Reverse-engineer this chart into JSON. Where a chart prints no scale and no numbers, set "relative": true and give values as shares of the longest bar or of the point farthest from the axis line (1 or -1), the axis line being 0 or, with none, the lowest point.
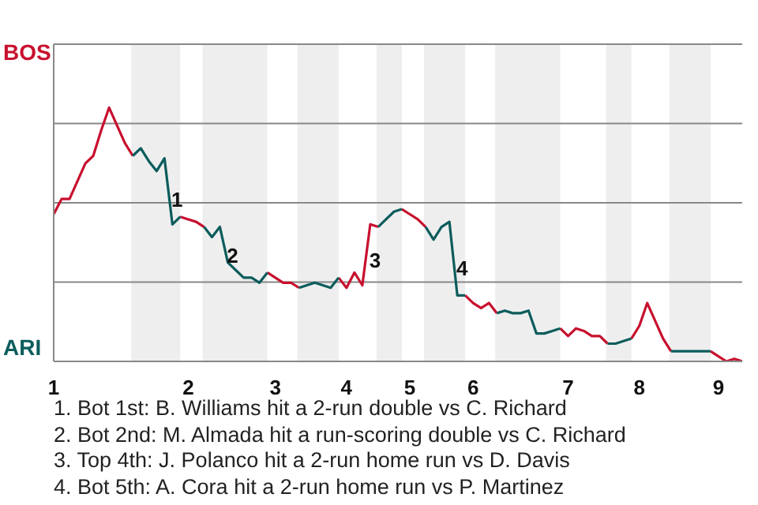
{
  "chart_data": {
    "type": "line",
    "relative": true,
    "categories": [
      "1",
      null,
      null,
      null,
      null,
      null,
      null,
      null,
      null,
      null,
      null,
      null,
      null,
      null,
      null,
      null,
      null,
      "2",
      null,
      null,
      null,
      null,
      null,
      null,
      null,
      null,
      null,
      null,
      "3",
      null,
      null,
      null,
      null,
      null,
      null,
      null,
      null,
      "4",
      null,
      null,
      null,
      null,
      null,
      null,
      null,
      "5",
      null,
      null,
      null,
      null,
      null,
      null,
      null,
      "6",
      null,
      null,
      null,
      null,
      null,
      null,
      null,
      null,
      null,
      null,
      null,
      "7",
      null,
      null,
      null,
      null,
      null,
      null,
      null,
      null,
      "8",
      null,
      null,
      null,
      null,
      null,
      null,
      null,
      null,
      null,
      "9",
      null,
      null,
      null
    ],
    "series": [
      {
        "color": "#c8102e",
        "values": [
          0.58,
          0.64,
          0.64,
          0.71,
          0.78,
          0.81,
          0.91,
          1,
          0.93,
          0.86,
          0.81,
          null,
          null,
          null,
          null,
          null,
          0.57,
          0.56,
          0.55,
          0.53,
          null,
          null,
          null,
          null,
          null,
          null,
          null,
          0.35,
          0.33,
          0.31,
          0.31,
          0.29,
          null,
          null,
          null,
          null,
          0.33,
          0.29,
          0.35,
          0.3,
          0.54,
          0.53,
          null,
          null,
          0.6,
          0.58,
          0.56,
          0.53,
          null,
          null,
          null,
          null,
          0.26,
          0.23,
          0.21,
          0.23,
          0.19,
          null,
          null,
          null,
          null,
          null,
          null,
          null,
          0.13,
          0.1,
          0.13,
          0.12,
          0.1,
          0.1,
          0.07,
          null,
          null,
          0.09,
          0.14,
          0.23,
          0.16,
          0.09,
          0.04,
          null,
          null,
          null,
          null,
          0.04,
          0.02,
          0,
          0.01,
          0
        ]
      },
      {
        "color": "#0c5c5c",
        "values": [
          null,
          null,
          null,
          null,
          null,
          null,
          null,
          null,
          null,
          null,
          0.81,
          0.84,
          0.79,
          0.75,
          0.8,
          0.54,
          0.57,
          null,
          null,
          0.53,
          0.49,
          0.53,
          0.39,
          0.36,
          0.33,
          0.33,
          0.31,
          0.35,
          null,
          null,
          null,
          0.29,
          0.3,
          0.31,
          0.3,
          0.29,
          0.33,
          null,
          null,
          null,
          null,
          0.53,
          0.56,
          0.59,
          0.6,
          null,
          null,
          0.53,
          0.48,
          0.53,
          0.55,
          0.26,
          0.26,
          null,
          null,
          null,
          0.19,
          0.2,
          0.19,
          0.19,
          0.2,
          0.11,
          0.11,
          0.12,
          0.13,
          null,
          null,
          null,
          null,
          null,
          0.07,
          0.07,
          0.08,
          0.09,
          null,
          null,
          null,
          null,
          0.04,
          0.04,
          0.04,
          0.04,
          0.04,
          0.04,
          null,
          null,
          null,
          null
        ]
      }
    ],
    "grid": "y",
    "annotations": [
      "BOS",
      "ARI",
      "1",
      "2",
      "3",
      "4",
      "1. Bot 1st: B. Williams hit a 2-run double vs C. Richard",
      "2. Bot 2nd: M. Almada hit a run-scoring double vs C. Richard",
      "3. Top 4th: J. Polanco hit a 2-run home run vs D. Davis",
      "4. Bot 5th: A. Cora hit a 2-run home run vs P. Martinez"
    ]
  }
}
